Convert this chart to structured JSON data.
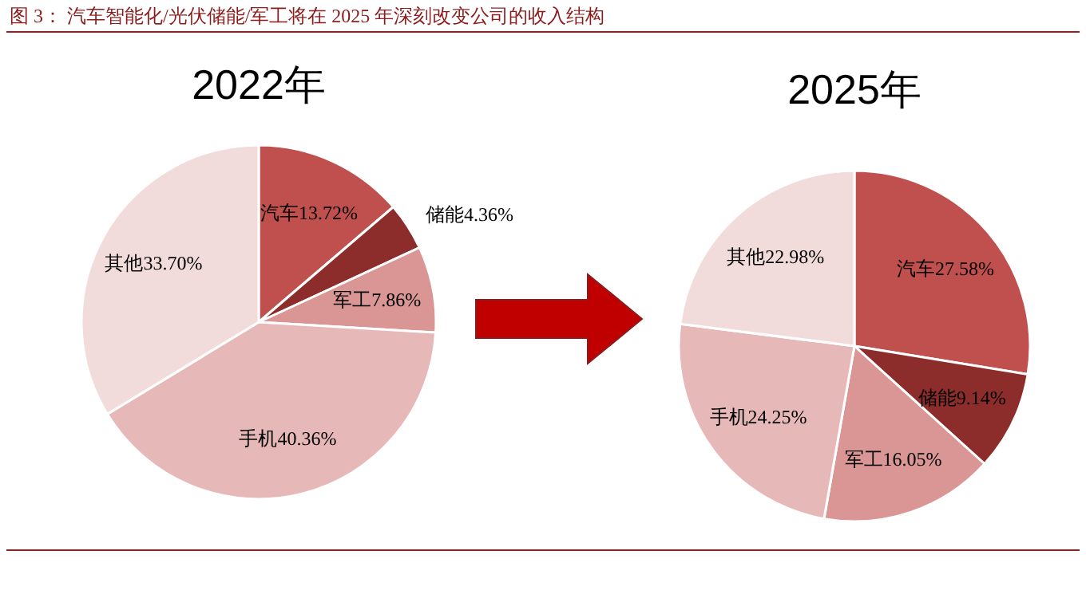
{
  "chart_data": [
    {
      "type": "pie",
      "title": "2022年",
      "annotations": [
        "图 3：  汽车智能化/光伏储能/军工将在 2025 年深刻改变公司的收入结构"
      ],
      "categories": [
        "汽车",
        "储能",
        "军工",
        "手机",
        "其他"
      ],
      "values": [
        13.72,
        4.36,
        7.86,
        40.36,
        33.7
      ],
      "value_labels": [
        "13.72%",
        "4.36%",
        "7.86%",
        "40.36%",
        "33.70%"
      ],
      "colors": [
        "#c0504d",
        "#8c2d2b",
        "#d99694",
        "#e6b9b8",
        "#f2dcdb"
      ]
    },
    {
      "type": "pie",
      "title": "2025年",
      "categories": [
        "汽车",
        "储能",
        "军工",
        "手机",
        "其他"
      ],
      "values": [
        27.58,
        9.14,
        16.05,
        24.25,
        22.98
      ],
      "value_labels": [
        "27.58%",
        "9.14%",
        "16.05%",
        "24.25%",
        "22.98%"
      ],
      "colors": [
        "#c0504d",
        "#8c2d2b",
        "#d99694",
        "#e6b9b8",
        "#f2dcdb"
      ]
    }
  ]
}
